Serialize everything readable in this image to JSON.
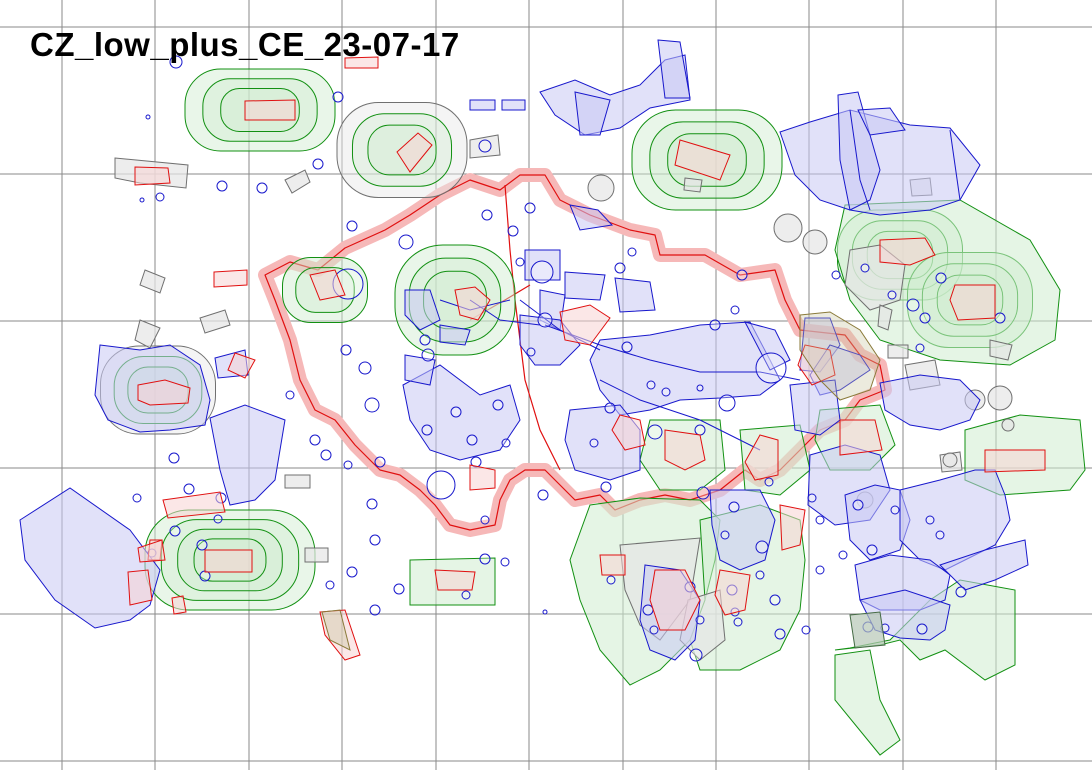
{
  "map": {
    "title": "CZ_low_plus_CE_23-07-17"
  },
  "legend_colors": {
    "grid": "#8a8a8a",
    "border": "#e01010",
    "border_halo": "#f6b8b8",
    "red_zone": "#e01010",
    "blue_zone": "#1818cc",
    "blue_fill": "#c8c8f4",
    "green_zone": "#129012",
    "green_fill": "#cfeccf",
    "gray_zone": "#707070",
    "gray_fill": "#e6e6e6"
  }
}
